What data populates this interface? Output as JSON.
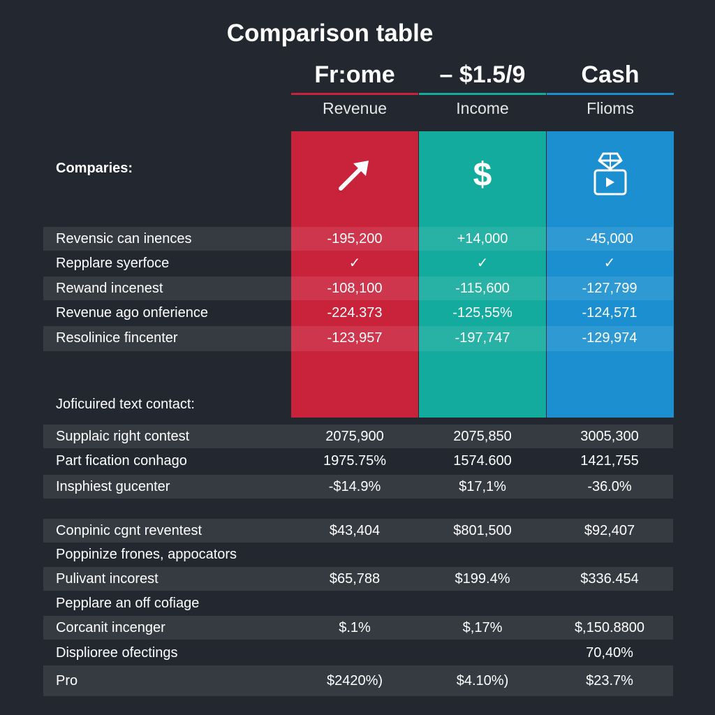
{
  "title": "Comparison table",
  "columns": [
    {
      "name": "Fr:ome",
      "sub": "Revenue",
      "color": "#c8233b",
      "rule": "#c8233b",
      "icon": "arrow-up-right-icon"
    },
    {
      "name": "– $1.5/9",
      "sub": "Income",
      "color": "#13ab9d",
      "rule": "#13ab9d",
      "icon": "dollar-icon"
    },
    {
      "name": "Cash",
      "sub": "Flioms",
      "color": "#1b8fd0",
      "rule": "#1b8fd0",
      "icon": "cash-bag-icon"
    }
  ],
  "dollar_glyph": "$",
  "companies_label": "Comparies:",
  "notice_label": "Joficuired text contact:",
  "top_rows": [
    {
      "label": "Revensic can inences",
      "values": [
        "-195,200",
        "+14,000",
        "-45,000"
      ]
    },
    {
      "label": "Repplare syerfoce",
      "values": [
        "✓",
        "✓",
        "✓"
      ]
    },
    {
      "label": "Rewand incenest",
      "values": [
        "-108,100",
        "-115,600",
        "-127,799"
      ]
    },
    {
      "label": "Revenue ago onferience",
      "values": [
        "-224.373",
        "-125,55%",
        "-124,571"
      ]
    },
    {
      "label": "Resolinice fincenter",
      "values": [
        "-123,957",
        "-197,747",
        "-129,974"
      ]
    }
  ],
  "bottom_rows": [
    {
      "label": "Supplaic right contest",
      "values": [
        "2075,900",
        "2075,850",
        "3005,300"
      ]
    },
    {
      "label": "Part fication conhago",
      "values": [
        "1975.75%",
        "1574.600",
        "1421,755"
      ]
    },
    {
      "label": "Insphiest gucenter",
      "values": [
        "-$14.9%",
        "$17,1%",
        "-36.0%"
      ]
    },
    {
      "label": "Conpinic cgnt reventest",
      "values": [
        "$43,404",
        "$801,500",
        "$92,407"
      ]
    },
    {
      "label": "Poppinize frones, appocators",
      "values": [
        "",
        "",
        ""
      ]
    },
    {
      "label": "Pulivant incorest",
      "values": [
        "$65,788",
        "$199.4%",
        "$336.454"
      ]
    },
    {
      "label": "Pepplare an off cofiage",
      "values": [
        "",
        "",
        ""
      ]
    },
    {
      "label": "Corcanit incenger",
      "values": [
        "$.1%",
        "$,17%",
        "$,150.8800"
      ]
    },
    {
      "label": "Displioree ofectings",
      "values": [
        "",
        "",
        "70,40%"
      ]
    },
    {
      "label": "Pro",
      "values": [
        "$2420%)",
        "$4.10%)",
        "$23.7%"
      ]
    }
  ]
}
